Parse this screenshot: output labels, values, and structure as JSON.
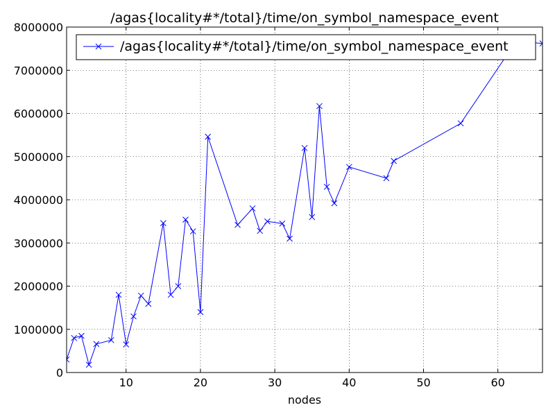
{
  "chart_data": {
    "type": "line",
    "title": "/agas{locality#*/total}/time/on_symbol_namespace_event",
    "xlabel": "nodes",
    "ylabel": "",
    "xlim": [
      2,
      66
    ],
    "ylim": [
      0,
      8000000
    ],
    "xticks": [
      10,
      20,
      30,
      40,
      50,
      60
    ],
    "yticks": [
      0,
      1000000,
      2000000,
      3000000,
      4000000,
      5000000,
      6000000,
      7000000,
      8000000
    ],
    "grid": true,
    "legend_position": "top",
    "series": [
      {
        "name": "/agas{locality#*/total}/time/on_symbol_namespace_event",
        "color": "#0000ff",
        "marker": "x",
        "x": [
          2,
          3,
          4,
          5,
          6,
          8,
          9,
          10,
          11,
          12,
          13,
          15,
          16,
          17,
          18,
          19,
          20,
          21,
          25,
          27,
          28,
          29,
          31,
          32,
          34,
          35,
          36,
          37,
          38,
          40,
          45,
          46,
          55,
          61,
          62,
          64,
          66
        ],
        "y": [
          300000,
          800000,
          850000,
          180000,
          660000,
          750000,
          1800000,
          650000,
          1300000,
          1780000,
          1590000,
          3460000,
          1800000,
          2000000,
          3540000,
          3270000,
          1400000,
          5460000,
          3420000,
          3800000,
          3280000,
          3500000,
          3450000,
          3100000,
          5200000,
          3600000,
          6170000,
          4300000,
          3920000,
          4760000,
          4500000,
          4900000,
          5770000,
          7300000,
          7550000,
          7650000,
          7620000
        ]
      }
    ]
  }
}
